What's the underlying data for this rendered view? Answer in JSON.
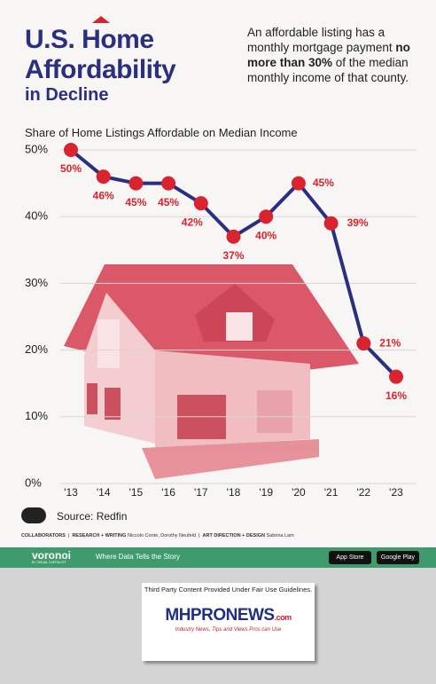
{
  "chart_data": {
    "type": "line",
    "title": [
      "U.S. Home",
      "Affordability"
    ],
    "subtitle": "in Decline",
    "description": [
      "An affordable listing has a monthly mortgage payment ",
      "no more than 30%",
      " of the median monthly income of that county."
    ],
    "chart_title": "Share of Home Listings Affordable on Median Income",
    "categories": [
      "'13",
      "'14",
      "'15",
      "'16",
      "'17",
      "'18",
      "'19",
      "'20",
      "'21",
      "'22",
      "'23"
    ],
    "series": [
      {
        "name": "Share affordable",
        "color": "#2b2f7f",
        "marker_color": "#d9232e",
        "values": [
          50,
          46,
          45,
          45,
          42,
          37,
          40,
          45,
          39,
          21,
          16
        ],
        "value_labels": [
          "50%",
          "46%",
          "45%",
          "45%",
          "42%",
          "37%",
          "40%",
          "45%",
          "39%",
          "21%",
          "16%"
        ]
      }
    ],
    "ylim": [
      0,
      50
    ],
    "yticks": [
      {
        "value": 0,
        "label": "0%"
      },
      {
        "value": 10,
        "label": "10%"
      },
      {
        "value": 20,
        "label": "20%"
      },
      {
        "value": 30,
        "label": "30%"
      },
      {
        "value": 40,
        "label": "40%"
      },
      {
        "value": 50,
        "label": "50%"
      }
    ],
    "grid": true,
    "source": "Source: Redfin"
  },
  "credits": {
    "label": "COLLABORATORS",
    "role1": "RESEARCH + WRITING",
    "names1": "Niccolo Conte, Dorothy Neufeld",
    "role2": "ART DIRECTION + DESIGN",
    "names2": "Sabrina Lam"
  },
  "footer": {
    "brand": "voronoi",
    "byline": "BY VISUAL CAPITALIST",
    "tagline": "Where Data Tells the Story",
    "store1": "App Store",
    "store2": "Google Play"
  },
  "notice": {
    "text": "Third Party Content Provided Under Fair Use Guidelines.",
    "logo": "MHPRONEWS",
    "logo_suffix": ".com",
    "slogan": "Industry News, Tips and Views Pros can Use"
  }
}
